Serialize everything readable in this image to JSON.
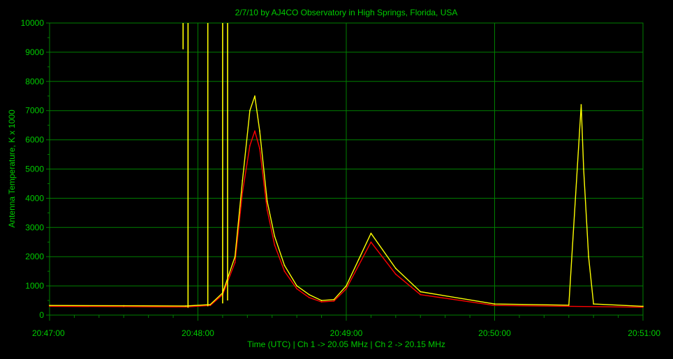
{
  "chart_data": {
    "type": "line",
    "title": "2/7/10  by  AJ4CO Observatory  in  High Springs, Florida, USA",
    "xlabel": "Time (UTC)  |  Ch 1 -> 20.05 MHz  |  Ch 2 -> 20.15 MHz",
    "ylabel": "Antenna Temperature, K x 1000",
    "xlim": [
      "20:47:00",
      "20:51:00"
    ],
    "ylim": [
      0,
      10000
    ],
    "x_ticks": [
      "20:47:00",
      "20:48:00",
      "20:49:00",
      "20:50:00",
      "20:51:00"
    ],
    "y_ticks": [
      "0",
      "1000",
      "2000",
      "3000",
      "4000",
      "5000",
      "6000",
      "7000",
      "8000",
      "9000",
      "10000"
    ],
    "grid": true,
    "colors": {
      "background": "#000000",
      "grid": "#008000",
      "text": "#00cc00",
      "series_1": "#ff0000",
      "series_2": "#ffff00"
    },
    "series": [
      {
        "channel": "Ch 1",
        "color": "#ff0000",
        "x": [
          "20:47:00",
          "20:47:30",
          "20:47:55",
          "20:48:05",
          "20:48:10",
          "20:48:15",
          "20:48:18",
          "20:48:21",
          "20:48:23",
          "20:48:25",
          "20:48:28",
          "20:48:31",
          "20:48:35",
          "20:48:40",
          "20:48:45",
          "20:48:50",
          "20:48:55",
          "20:49:00",
          "20:49:05",
          "20:49:10",
          "20:49:20",
          "20:49:30",
          "20:50:00",
          "20:50:30",
          "20:51:00"
        ],
        "values": [
          300,
          290,
          280,
          330,
          700,
          1800,
          4200,
          5800,
          6300,
          5700,
          3600,
          2400,
          1500,
          900,
          600,
          450,
          480,
          900,
          1700,
          2500,
          1400,
          700,
          330,
          300,
          270
        ]
      },
      {
        "channel": "Ch 2",
        "color": "#ffff00",
        "x": [
          "20:47:00",
          "20:47:30",
          "20:47:55",
          "20:48:05",
          "20:48:10",
          "20:48:15",
          "20:48:18",
          "20:48:21",
          "20:48:23",
          "20:48:25",
          "20:48:28",
          "20:48:31",
          "20:48:35",
          "20:48:40",
          "20:48:45",
          "20:48:50",
          "20:48:55",
          "20:49:00",
          "20:49:05",
          "20:49:10",
          "20:49:20",
          "20:49:30",
          "20:50:00",
          "20:50:30",
          "20:50:35",
          "20:50:36",
          "20:50:38",
          "20:50:40",
          "20:51:00"
        ],
        "values": [
          330,
          320,
          310,
          360,
          760,
          2000,
          4600,
          7000,
          7500,
          6300,
          3900,
          2700,
          1700,
          1000,
          700,
          500,
          530,
          1000,
          1900,
          2800,
          1600,
          800,
          380,
          340,
          7200,
          5000,
          2000,
          380,
          300
        ]
      }
    ],
    "annotations": [
      {
        "type": "vertical-spike",
        "x": "20:47:54",
        "color": "#ffff00",
        "from": 9100,
        "to": 10000
      },
      {
        "type": "vertical-spike",
        "x": "20:47:56",
        "color": "#ffff00",
        "from": 250,
        "to": 10000
      },
      {
        "type": "vertical-spike",
        "x": "20:48:04",
        "color": "#ffff00",
        "from": 300,
        "to": 10000
      },
      {
        "type": "vertical-spike",
        "x": "20:48:10",
        "color": "#ffff00",
        "from": 400,
        "to": 10000
      },
      {
        "type": "vertical-spike",
        "x": "20:48:12",
        "color": "#ffff00",
        "from": 500,
        "to": 10000
      }
    ]
  }
}
